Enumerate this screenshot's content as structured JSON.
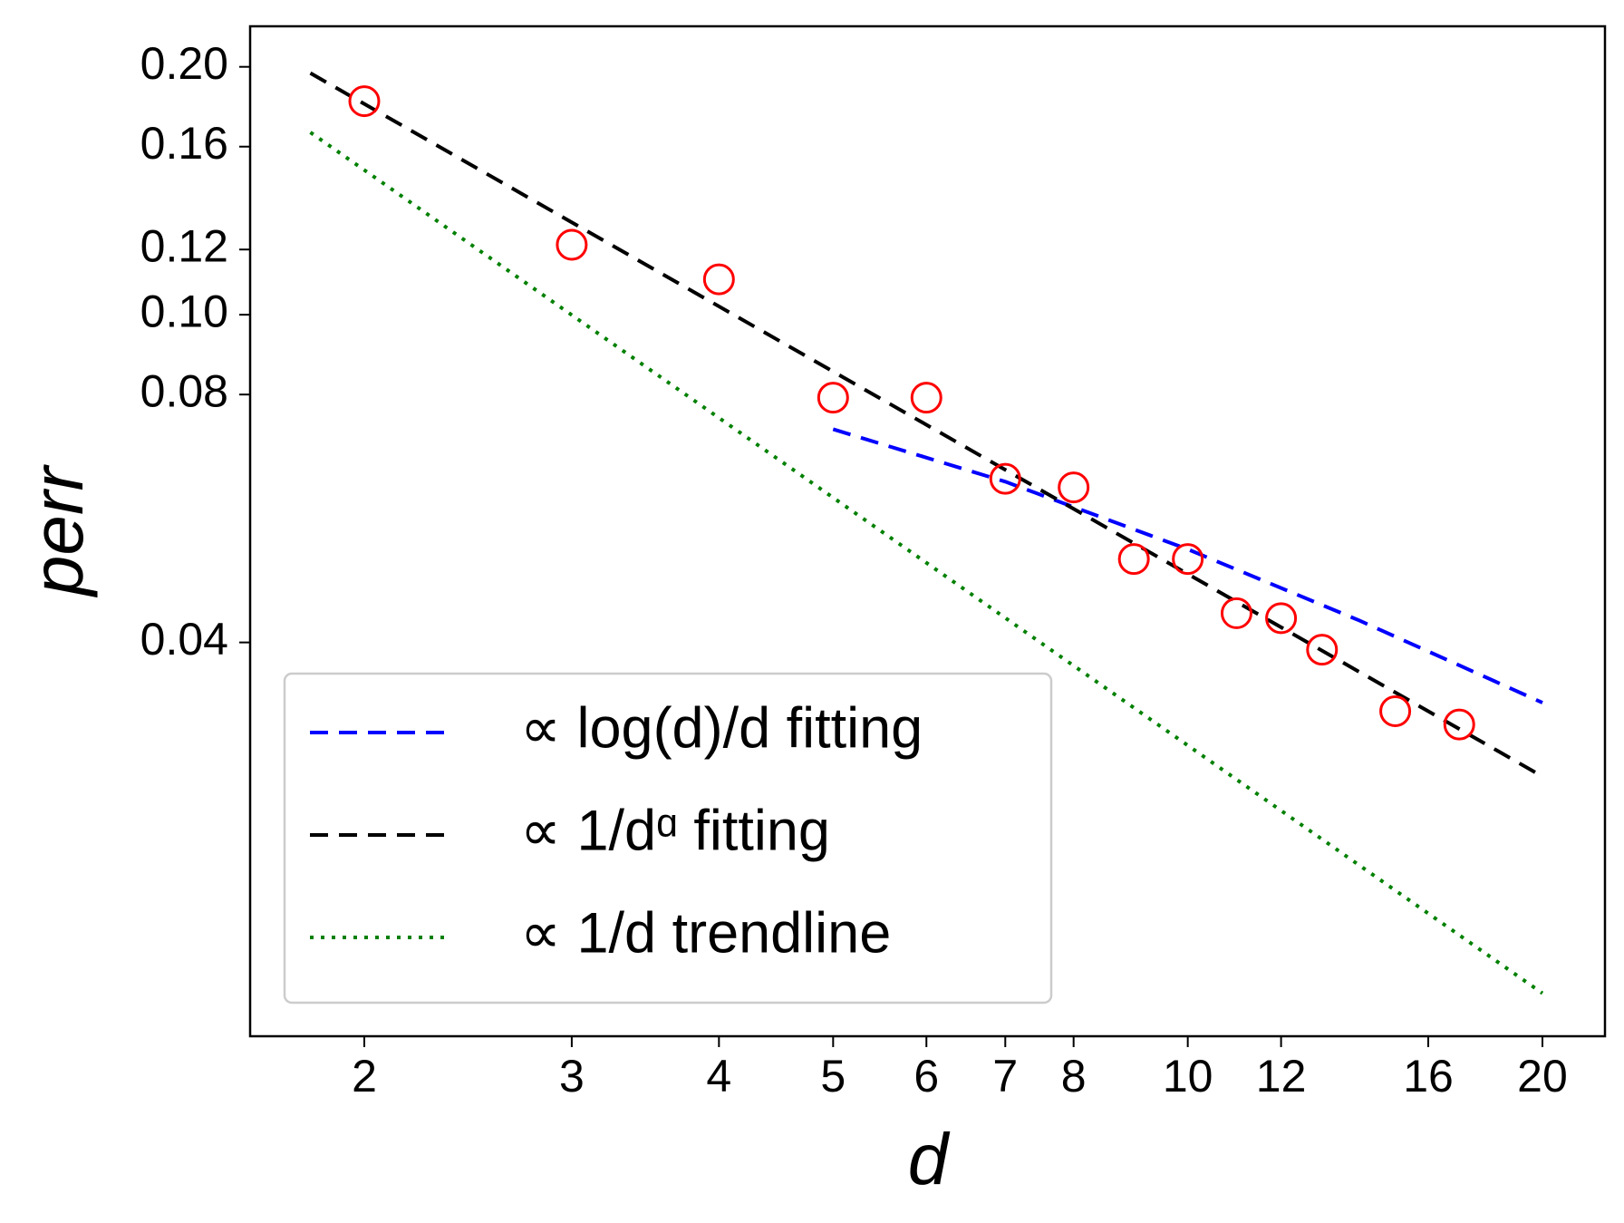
{
  "chart_data": {
    "type": "scatter",
    "xlabel": "d",
    "ylabel": "perr",
    "log_x": true,
    "log_y": true,
    "xlim": [
      1.6,
      22.6
    ],
    "ylim": [
      0.0133,
      0.224
    ],
    "xticks": [
      2,
      3,
      4,
      5,
      6,
      7,
      8,
      10,
      12,
      16,
      20
    ],
    "yticks": [
      {
        "value": 0.2,
        "label": "0.20"
      },
      {
        "value": 0.16,
        "label": "0.16"
      },
      {
        "value": 0.12,
        "label": "0.12"
      },
      {
        "value": 0.1,
        "label": "0.10"
      },
      {
        "value": 0.08,
        "label": "0.08"
      },
      {
        "value": 0.04,
        "label": "0.04"
      }
    ],
    "points": {
      "color": "#ff0000",
      "x": [
        2,
        3,
        4,
        5,
        6,
        7,
        8,
        9,
        10,
        11,
        12,
        13,
        15,
        17
      ],
      "values": [
        0.1817,
        0.1216,
        0.1104,
        0.0793,
        0.0793,
        0.0632,
        0.0617,
        0.0505,
        0.0505,
        0.0434,
        0.0428,
        0.0392,
        0.033,
        0.0318
      ]
    },
    "legend": "lower left",
    "series": [
      {
        "name": "∝ log(d)/d fitting",
        "color": "#0000ff",
        "style": "dashed",
        "x": [
          5,
          7,
          10,
          14,
          20
        ],
        "values": [
          0.0726,
          0.0627,
          0.0519,
          0.0425,
          0.0338
        ]
      },
      {
        "name": "∝ 1/dᵅ fitting",
        "color": "#000000",
        "style": "dashed",
        "x": [
          1.8,
          20
        ],
        "values": [
          0.1965,
          0.0275
        ]
      },
      {
        "name": "∝ 1/d trendline",
        "color": "#008000",
        "style": "dotted",
        "x": [
          1.8,
          20
        ],
        "values": [
          0.1665,
          0.015
        ]
      }
    ]
  }
}
